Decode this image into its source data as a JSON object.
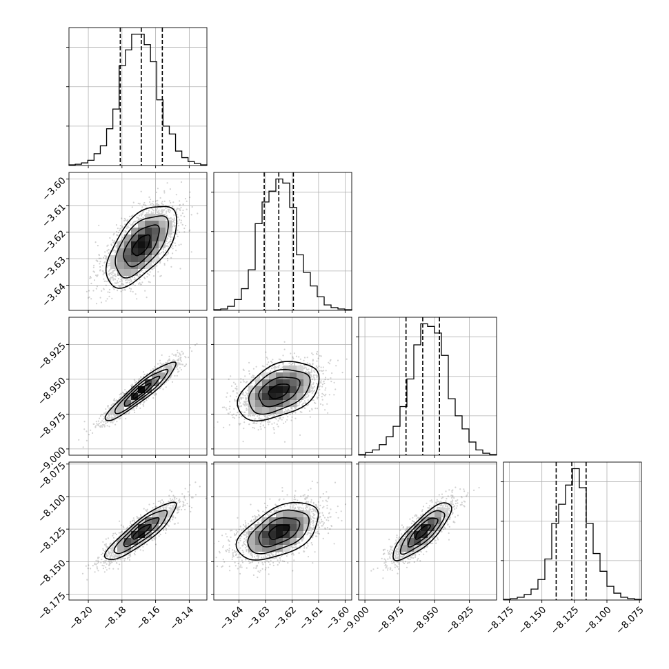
{
  "chart_data": {
    "type": "corner",
    "grid": true,
    "colors": {
      "line": "#000000",
      "grid": "#b0b0b0",
      "samples": "#000000",
      "frame": "#000000"
    },
    "params": [
      {
        "mean": -8.1685,
        "std": 0.0105,
        "range": [
          -8.2115,
          -8.1295
        ],
        "ticks": [
          -8.2,
          -8.18,
          -8.16,
          -8.14
        ],
        "tick_labels": [
          "−8.20",
          "−8.18",
          "−8.16",
          "−8.14"
        ],
        "quantiles": [
          -8.181,
          -8.1685,
          -8.156
        ],
        "hist": [
          0.5,
          1,
          2,
          4,
          9,
          15,
          28,
          43,
          76,
          88,
          100,
          100,
          92,
          79,
          50,
          30,
          24,
          11,
          6,
          3,
          1.5,
          0.5
        ]
      },
      {
        "mean": -3.625,
        "std": 0.0077,
        "range": [
          -3.6495,
          -3.5975
        ],
        "ticks": [
          -3.64,
          -3.63,
          -3.62,
          -3.61,
          -3.6
        ],
        "tick_labels": [
          "−3.64",
          "−3.63",
          "−3.62",
          "−3.61",
          "−3.60"
        ],
        "quantiles": [
          -3.6305,
          -3.625,
          -3.6195
        ],
        "hist": [
          0.5,
          1,
          3,
          8,
          16,
          30,
          64,
          80,
          88,
          97,
          94,
          76,
          41,
          28,
          18,
          10,
          4,
          2,
          1,
          0.5
        ]
      },
      {
        "mean": -8.9585,
        "std": 0.0105,
        "range": [
          -9.0045,
          -8.9055
        ],
        "ticks": [
          -9.0,
          -8.975,
          -8.95,
          -8.925
        ],
        "tick_labels": [
          "−9.000",
          "−8.975",
          "−8.950",
          "−8.925"
        ],
        "quantiles": [
          -8.9705,
          -8.9585,
          -8.9465
        ],
        "hist": [
          0.5,
          2,
          4,
          8,
          14,
          22,
          37,
          58,
          84,
          100,
          98,
          93,
          76,
          43,
          30,
          20,
          10,
          4,
          1.5,
          0.5
        ]
      },
      {
        "mean": -8.127,
        "std": 0.011,
        "range": [
          -8.1795,
          -8.0735
        ],
        "ticks": [
          -8.175,
          -8.15,
          -8.125,
          -8.1,
          -8.075
        ],
        "tick_labels": [
          "−8.175",
          "−8.150",
          "−8.125",
          "−8.100",
          "−8.075"
        ],
        "quantiles": [
          -8.139,
          -8.127,
          -8.116
        ],
        "hist": [
          0.5,
          1,
          2,
          4,
          8,
          15,
          30,
          56,
          70,
          84,
          96,
          82,
          56,
          34,
          21,
          10,
          5,
          2,
          1,
          0.5
        ]
      }
    ],
    "correlations": {
      "1-0": 0.6,
      "2-0": 0.93,
      "2-1": 0.42,
      "3-0": 0.88,
      "3-1": 0.5,
      "3-2": 0.83
    },
    "contour_levels_sigma": [
      0.5,
      1.0,
      1.5,
      2.0
    ]
  }
}
